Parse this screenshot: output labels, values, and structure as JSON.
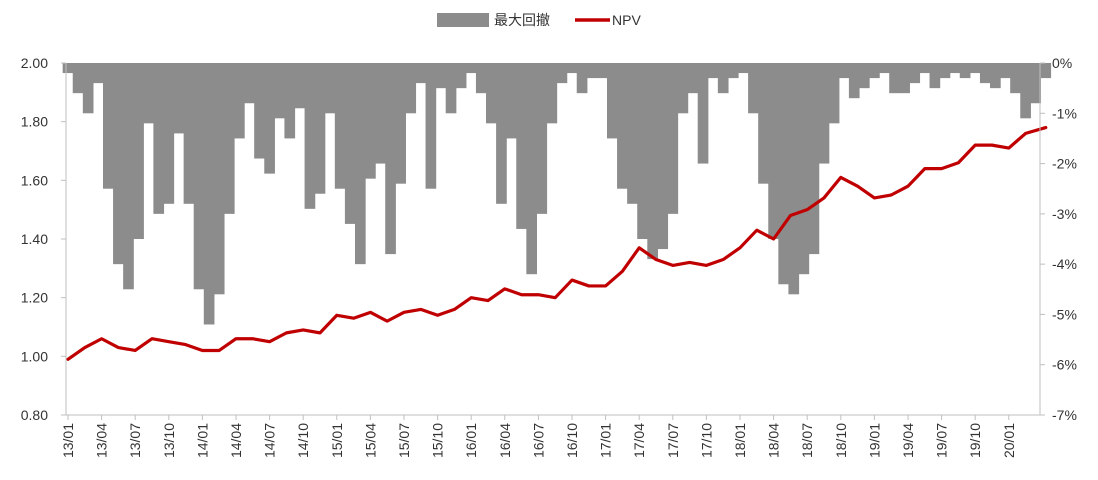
{
  "chart_data": {
    "type": "area+line",
    "legend": {
      "placement": "top-center",
      "items": [
        {
          "name": "最大回撤",
          "type": "area",
          "color": "#8c8c8c"
        },
        {
          "name": "NPV",
          "type": "line",
          "color": "#c00000"
        }
      ]
    },
    "y_left": {
      "range": [
        0.8,
        2.0
      ],
      "ticks": [
        "0.80",
        "1.00",
        "1.20",
        "1.40",
        "1.60",
        "1.80",
        "2.00"
      ]
    },
    "y_right": {
      "range": [
        -7,
        0
      ],
      "unit": "%",
      "ticks": [
        "0%",
        "-1%",
        "-2%",
        "-3%",
        "-4%",
        "-5%",
        "-6%",
        "-7%"
      ]
    },
    "x": {
      "ticks": [
        "13/01",
        "13/04",
        "13/07",
        "13/10",
        "14/01",
        "14/04",
        "14/07",
        "14/10",
        "15/01",
        "15/04",
        "15/07",
        "15/10",
        "16/01",
        "16/04",
        "16/07",
        "16/10",
        "17/01",
        "17/04",
        "17/07",
        "17/10",
        "18/01",
        "18/04",
        "18/07",
        "18/10",
        "19/01",
        "19/04",
        "19/07",
        "19/10",
        "20/01"
      ]
    },
    "series": [
      {
        "name": "NPV",
        "axis": "left",
        "x": [
          0,
          0.5,
          1,
          1.5,
          2,
          2.5,
          3,
          3.5,
          4,
          4.5,
          5,
          5.5,
          6,
          6.5,
          7,
          7.5,
          8,
          8.5,
          9,
          9.5,
          10,
          10.5,
          11,
          11.5,
          12,
          12.5,
          13,
          13.5,
          14,
          14.5,
          15,
          15.5,
          16,
          16.5,
          17,
          17.5,
          18,
          18.5,
          19,
          19.5,
          20,
          20.5,
          21,
          21.5,
          22,
          22.5,
          23,
          23.5,
          24,
          24.5,
          25,
          25.5,
          26,
          26.5,
          27,
          27.5,
          28,
          28.5,
          29.1
        ],
        "values": [
          0.99,
          1.03,
          1.06,
          1.03,
          1.02,
          1.06,
          1.05,
          1.04,
          1.02,
          1.02,
          1.06,
          1.06,
          1.05,
          1.08,
          1.09,
          1.08,
          1.14,
          1.13,
          1.15,
          1.12,
          1.15,
          1.16,
          1.14,
          1.16,
          1.2,
          1.19,
          1.23,
          1.21,
          1.21,
          1.2,
          1.26,
          1.24,
          1.24,
          1.29,
          1.37,
          1.33,
          1.31,
          1.32,
          1.31,
          1.33,
          1.37,
          1.43,
          1.4,
          1.48,
          1.5,
          1.54,
          1.61,
          1.58,
          1.54,
          1.55,
          1.58,
          1.64,
          1.64,
          1.66,
          1.72,
          1.72,
          1.71,
          1.76,
          1.78
        ]
      },
      {
        "name": "最大回撤",
        "axis": "right",
        "unit": "%",
        "x": [
          0.0,
          0.3,
          0.6,
          0.9,
          1.2,
          1.5,
          1.8,
          2.1,
          2.4,
          2.7,
          3.0,
          3.3,
          3.6,
          3.9,
          4.2,
          4.5,
          4.8,
          5.1,
          5.4,
          5.7,
          6.0,
          6.3,
          6.6,
          6.9,
          7.2,
          7.5,
          7.8,
          8.1,
          8.4,
          8.7,
          9.0,
          9.3,
          9.6,
          9.9,
          10.2,
          10.5,
          10.8,
          11.1,
          11.4,
          11.7,
          12.0,
          12.3,
          12.6,
          12.9,
          13.2,
          13.5,
          13.8,
          14.1,
          14.4,
          14.7,
          15.0,
          15.3,
          15.6,
          15.9,
          16.2,
          16.5,
          16.8,
          17.1,
          17.4,
          17.7,
          18.0,
          18.3,
          18.6,
          18.9,
          19.2,
          19.5,
          19.8,
          20.1,
          20.4,
          20.7,
          21.0,
          21.3,
          21.6,
          21.9,
          22.2,
          22.5,
          22.8,
          23.1,
          23.4,
          23.7,
          24.0,
          24.3,
          24.6,
          24.9,
          25.2,
          25.5,
          25.8,
          26.1,
          26.4,
          26.7,
          27.0,
          27.3,
          27.6,
          27.9,
          28.2,
          28.5,
          28.8,
          29.1
        ],
        "values": [
          -0.2,
          -0.6,
          -1.0,
          -0.4,
          -2.5,
          -4.0,
          -4.5,
          -3.5,
          -1.2,
          -3.0,
          -2.8,
          -1.4,
          -2.8,
          -4.5,
          -5.2,
          -4.6,
          -3.0,
          -1.5,
          -0.8,
          -1.9,
          -2.2,
          -1.1,
          -1.5,
          -0.9,
          -2.9,
          -2.6,
          -1.0,
          -2.5,
          -3.2,
          -4.0,
          -2.3,
          -2.0,
          -3.8,
          -2.4,
          -1.0,
          -0.4,
          -2.5,
          -0.5,
          -1.0,
          -0.5,
          -0.2,
          -0.6,
          -1.2,
          -2.8,
          -1.5,
          -3.3,
          -4.2,
          -3.0,
          -1.2,
          -0.4,
          -0.2,
          -0.6,
          -0.3,
          -0.3,
          -1.5,
          -2.5,
          -2.8,
          -3.5,
          -3.9,
          -3.7,
          -3.0,
          -1.0,
          -0.6,
          -2.0,
          -0.3,
          -0.6,
          -0.3,
          -0.2,
          -1.0,
          -2.4,
          -3.5,
          -4.4,
          -4.6,
          -4.2,
          -3.8,
          -2.0,
          -1.2,
          -0.3,
          -0.7,
          -0.5,
          -0.3,
          -0.2,
          -0.6,
          -0.6,
          -0.4,
          -0.2,
          -0.5,
          -0.3,
          -0.2,
          -0.3,
          -0.2,
          -0.4,
          -0.5,
          -0.3,
          -0.6,
          -1.1,
          -0.8,
          -0.3
        ]
      }
    ]
  }
}
